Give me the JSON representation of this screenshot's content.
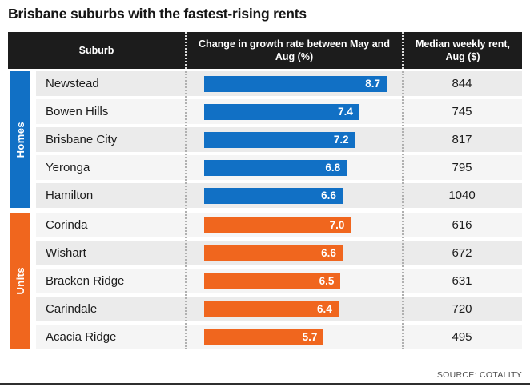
{
  "title": "Brisbane suburbs with the fastest-rising rents",
  "source": "SOURCE: COTALITY",
  "colors": {
    "homes_blue": "#1170c5",
    "units_orange": "#f0661e",
    "header_bg": "#1c1c1c",
    "row_shade_a": "#ebebeb",
    "row_shade_b": "#f5f5f5"
  },
  "table": {
    "headers": [
      "Suburb",
      "Change in growth rate between May and Aug (%)",
      "Median weekly rent, Aug ($)"
    ],
    "sections": [
      {
        "label": "Homes",
        "color": "#1170c5",
        "rows": [
          {
            "suburb": "Newstead",
            "change": 8.7,
            "rent": 844
          },
          {
            "suburb": "Bowen Hills",
            "change": 7.4,
            "rent": 745
          },
          {
            "suburb": "Brisbane City",
            "change": 7.2,
            "rent": 817
          },
          {
            "suburb": "Yeronga",
            "change": 6.8,
            "rent": 795
          },
          {
            "suburb": "Hamilton",
            "change": 6.6,
            "rent": 1040
          }
        ]
      },
      {
        "label": "Units",
        "color": "#f0661e",
        "rows": [
          {
            "suburb": "Corinda",
            "change": 7.0,
            "rent": 616
          },
          {
            "suburb": "Wishart",
            "change": 6.6,
            "rent": 672
          },
          {
            "suburb": "Bracken Ridge",
            "change": 6.5,
            "rent": 631
          },
          {
            "suburb": "Carindale",
            "change": 6.4,
            "rent": 720
          },
          {
            "suburb": "Acacia Ridge",
            "change": 5.7,
            "rent": 495
          }
        ]
      }
    ]
  },
  "chart_data": {
    "type": "bar",
    "orientation": "horizontal",
    "title": "Brisbane suburbs with the fastest-rising rents",
    "value_axis_label": "Change in growth rate between May and Aug (%)",
    "secondary_column_label": "Median weekly rent, Aug ($)",
    "xlim": [
      0,
      8.7
    ],
    "grid": false,
    "series": [
      {
        "name": "Homes",
        "color": "#1170c5",
        "categories": [
          "Newstead",
          "Bowen Hills",
          "Brisbane City",
          "Yeronga",
          "Hamilton"
        ],
        "values": [
          8.7,
          7.4,
          7.2,
          6.8,
          6.6
        ],
        "median_weekly_rent": [
          844,
          745,
          817,
          795,
          1040
        ]
      },
      {
        "name": "Units",
        "color": "#f0661e",
        "categories": [
          "Corinda",
          "Wishart",
          "Bracken Ridge",
          "Carindale",
          "Acacia Ridge"
        ],
        "values": [
          7.0,
          6.6,
          6.5,
          6.4,
          5.7
        ],
        "median_weekly_rent": [
          616,
          672,
          631,
          720,
          495
        ]
      }
    ],
    "source": "SOURCE: COTALITY"
  }
}
